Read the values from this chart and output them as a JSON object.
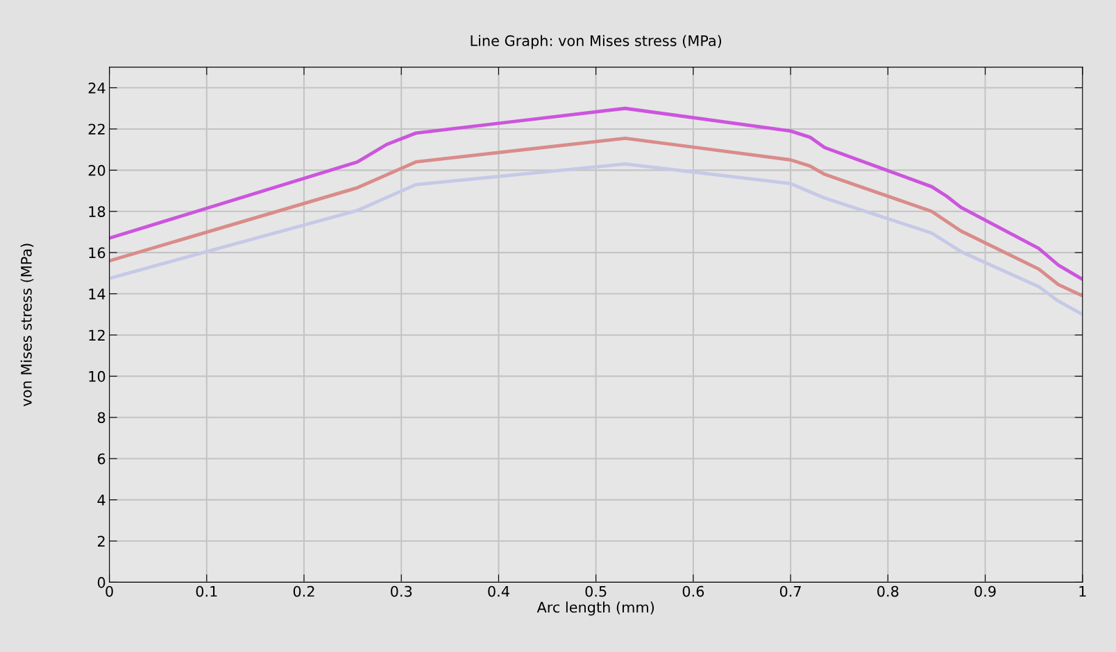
{
  "chart_data": {
    "type": "line",
    "title": "Line Graph: von Mises stress (MPa)",
    "xlabel": "Arc length (mm)",
    "ylabel": "von Mises stress (MPa)",
    "xlim": [
      0,
      1
    ],
    "xticks": [
      0,
      0.1,
      0.2,
      0.3,
      0.4,
      0.5,
      0.6,
      0.7,
      0.8,
      0.9,
      1
    ],
    "ylim": [
      0,
      25
    ],
    "yticks": [
      0,
      2,
      4,
      6,
      8,
      10,
      12,
      14,
      16,
      18,
      20,
      22,
      24
    ],
    "grid": true,
    "marker": "none",
    "line_style": "solid",
    "series": [
      {
        "color": "#c6c9e6",
        "x": [
          0,
          0.255,
          0.315,
          0.53,
          0.7,
          0.735,
          0.845,
          0.875,
          0.955,
          0.975,
          1
        ],
        "values": [
          14.75,
          18.05,
          19.3,
          20.3,
          19.35,
          18.65,
          16.95,
          16.05,
          14.35,
          13.65,
          13.0
        ]
      },
      {
        "color": "#d98c8a",
        "x": [
          0,
          0.255,
          0.315,
          0.53,
          0.7,
          0.72,
          0.735,
          0.845,
          0.875,
          0.955,
          0.975,
          1
        ],
        "values": [
          15.6,
          19.15,
          20.4,
          21.55,
          20.5,
          20.2,
          19.8,
          18.0,
          17.05,
          15.2,
          14.45,
          13.9
        ]
      },
      {
        "color": "#cc55dd",
        "x": [
          0,
          0.255,
          0.285,
          0.315,
          0.53,
          0.7,
          0.72,
          0.735,
          0.845,
          0.86,
          0.875,
          0.955,
          0.975,
          1
        ],
        "values": [
          16.7,
          20.4,
          21.25,
          21.8,
          23.0,
          21.9,
          21.6,
          21.1,
          19.2,
          18.75,
          18.2,
          16.2,
          15.4,
          14.7
        ]
      }
    ]
  }
}
